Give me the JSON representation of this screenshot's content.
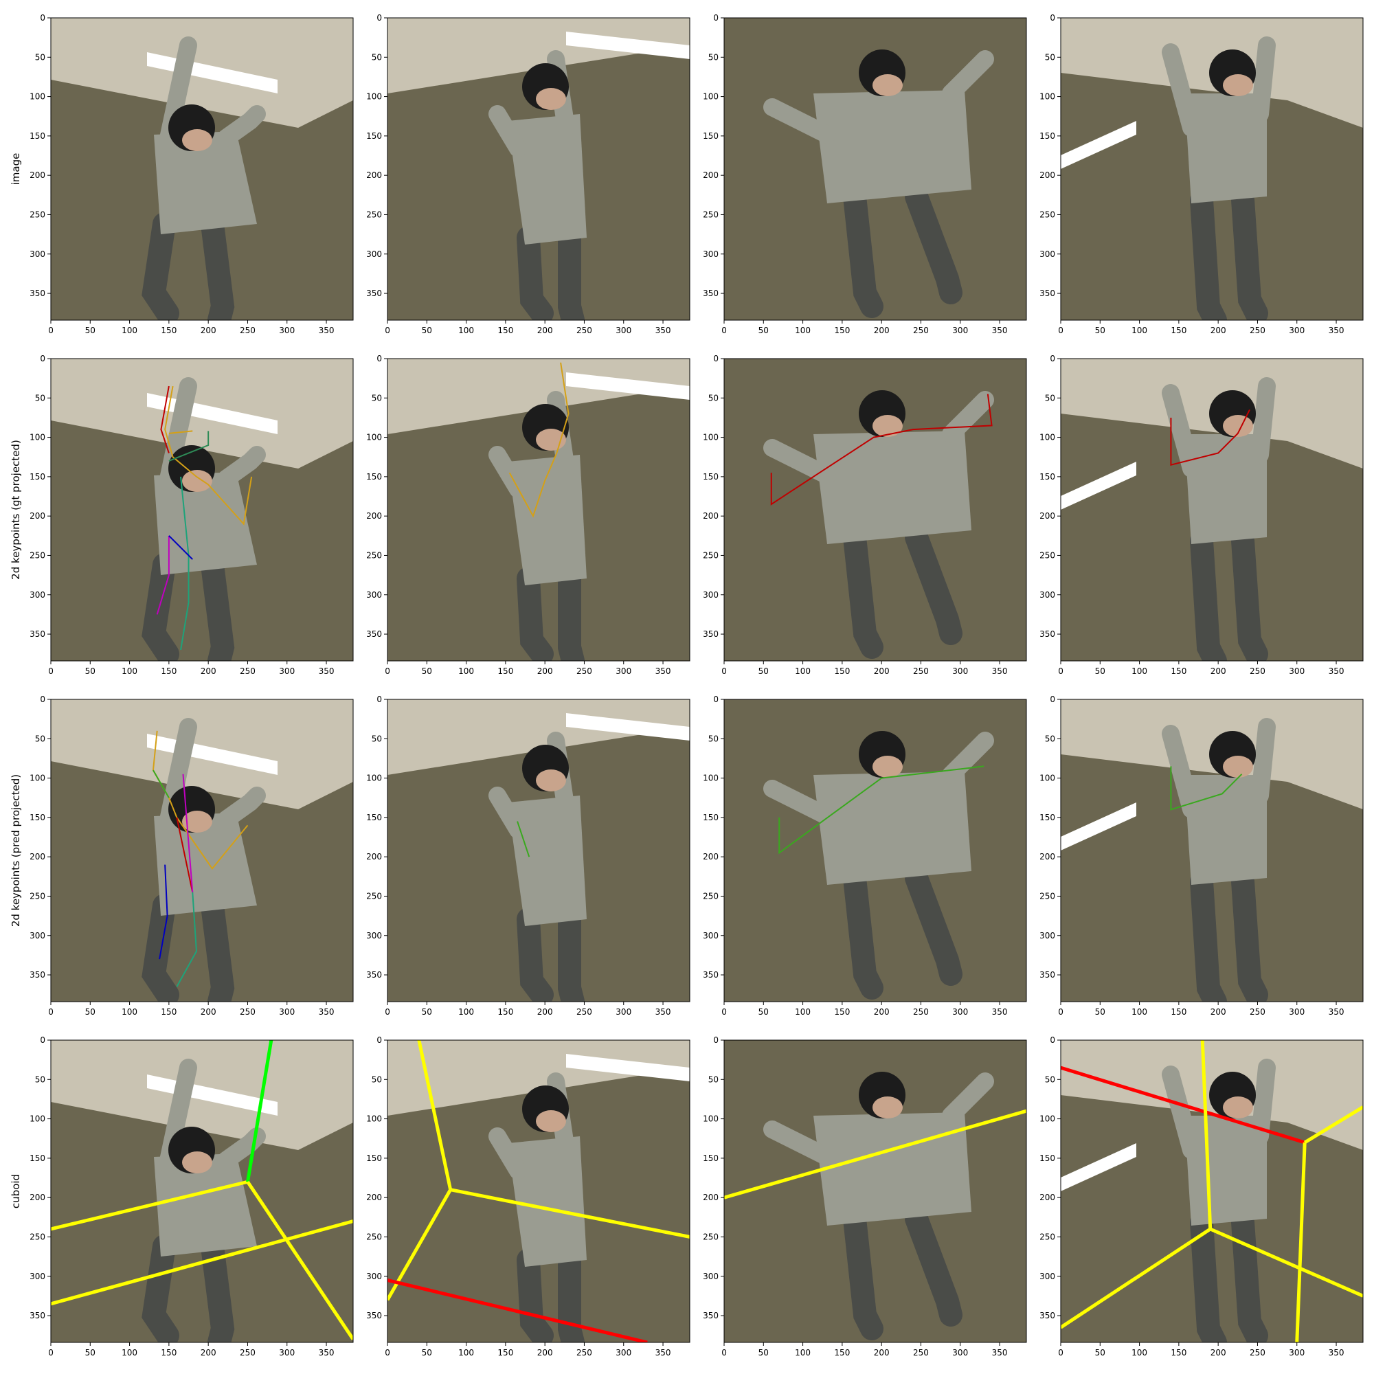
{
  "figure": {
    "row_labels": [
      "image",
      "2d keypoints (gt projected)",
      "2d keypoints (pred projected)",
      "cuboid"
    ],
    "x_ticks": [
      0,
      50,
      100,
      150,
      200,
      250,
      300,
      350
    ],
    "y_ticks": [
      0,
      50,
      100,
      150,
      200,
      250,
      300,
      350
    ],
    "axis_range": [
      0,
      384
    ],
    "columns": 4,
    "colors": {
      "background": "#6b6650",
      "wall": "#c9c3b2",
      "light": "#ffffff",
      "subject_shirt": "#9a9c91",
      "subject_pants": "#4a4c48",
      "subject_hair": "#1c1c1c",
      "subject_skin": "#c8a48c",
      "cuboid_yellow": "#ffff00",
      "cuboid_red": "#ff0000",
      "cuboid_green": "#00ff00"
    }
  }
}
